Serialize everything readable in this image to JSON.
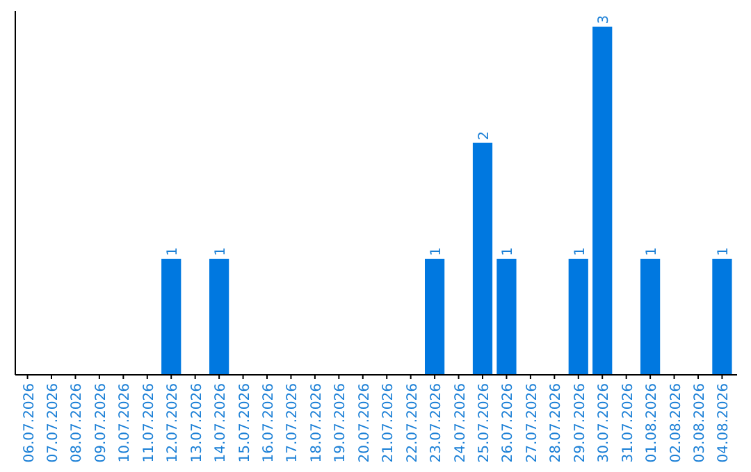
{
  "chart_data": {
    "type": "bar",
    "categories": [
      "06.07.2026",
      "07.07.2026",
      "08.07.2026",
      "09.07.2026",
      "10.07.2026",
      "11.07.2026",
      "12.07.2026",
      "13.07.2026",
      "14.07.2026",
      "15.07.2026",
      "16.07.2026",
      "17.07.2026",
      "18.07.2026",
      "19.07.2026",
      "20.07.2026",
      "21.07.2026",
      "22.07.2026",
      "23.07.2026",
      "24.07.2026",
      "25.07.2026",
      "26.07.2026",
      "27.07.2026",
      "28.07.2026",
      "29.07.2026",
      "30.07.2026",
      "31.07.2026",
      "01.08.2026",
      "02.08.2026",
      "03.08.2026",
      "04.08.2026"
    ],
    "values": [
      0,
      0,
      0,
      0,
      0,
      0,
      1,
      0,
      1,
      0,
      0,
      0,
      0,
      0,
      0,
      0,
      0,
      1,
      0,
      2,
      1,
      0,
      0,
      1,
      3,
      0,
      1,
      0,
      0,
      1
    ],
    "color": "#0078e0",
    "value_labels": [
      null,
      null,
      null,
      null,
      null,
      null,
      "1",
      null,
      "1",
      null,
      null,
      null,
      null,
      null,
      null,
      null,
      null,
      "1",
      null,
      "2",
      "1",
      null,
      null,
      "1",
      "3",
      null,
      "1",
      null,
      null,
      "1"
    ]
  }
}
